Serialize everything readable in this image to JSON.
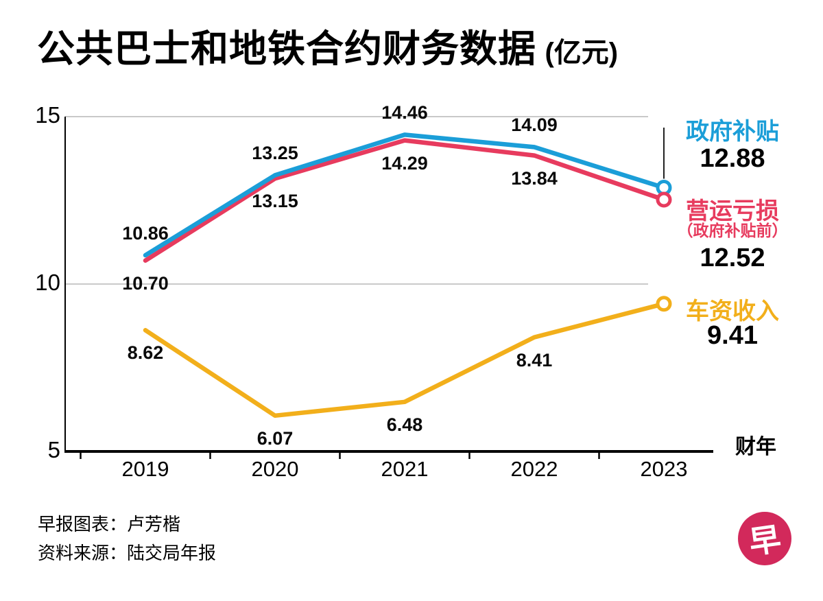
{
  "title": {
    "main": "公共巴士和地铁合约财务数据",
    "unit": "(亿元)"
  },
  "chart_data": {
    "type": "line",
    "x": [
      "2019",
      "2020",
      "2021",
      "2022",
      "2023"
    ],
    "xlabel": "财年",
    "ylabel": "",
    "ylim": [
      5,
      15
    ],
    "yticks": [
      5,
      10,
      15
    ],
    "grid": "horizontal",
    "legend_position": "right",
    "series": [
      {
        "name": "政府补贴",
        "color": "#1b9ed8",
        "values": [
          10.86,
          13.25,
          14.46,
          14.09,
          12.88
        ],
        "labels": [
          "10.86",
          "13.25",
          "14.46",
          "14.09"
        ],
        "end_label": "12.88",
        "label_side": "above"
      },
      {
        "name": "营运亏损",
        "subtitle": "（政府补贴前）",
        "color": "#e73b5e",
        "values": [
          10.7,
          13.15,
          14.29,
          13.84,
          12.52
        ],
        "labels": [
          "10.70",
          "13.15",
          "14.29",
          "13.84"
        ],
        "end_label": "12.52",
        "label_side": "below"
      },
      {
        "name": "车资收入",
        "color": "#f2af1b",
        "values": [
          8.62,
          6.07,
          6.48,
          8.41,
          9.41
        ],
        "labels": [
          "8.62",
          "6.07",
          "6.48",
          "8.41"
        ],
        "end_label": "9.41",
        "label_side": "below"
      }
    ]
  },
  "footer": {
    "credit": "早报图表：卢芳楷",
    "source": "资料来源：陆交局年报"
  },
  "logo": {
    "char": "早",
    "color": "#d2295b"
  }
}
